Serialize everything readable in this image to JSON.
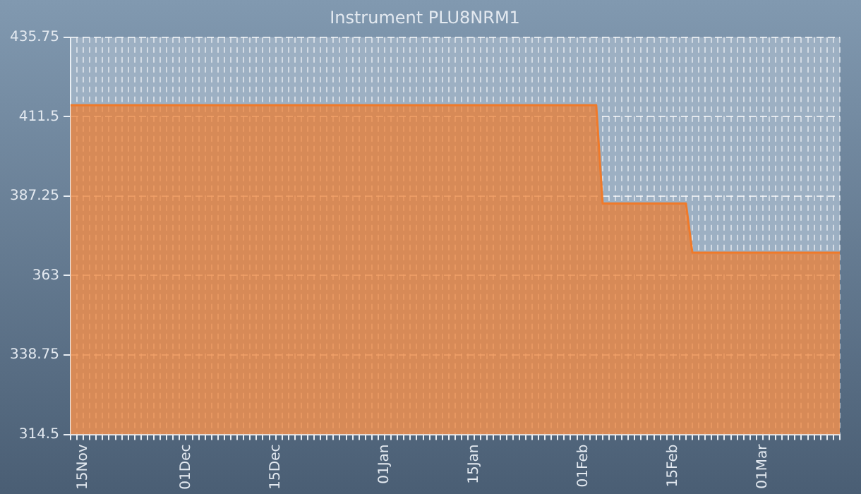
{
  "chart_data": {
    "type": "area",
    "title": "Instrument PLU8NRM1",
    "categories": [
      null,
      null,
      "15Nov",
      null,
      null,
      null,
      null,
      null,
      null,
      null,
      null,
      null,
      null,
      null,
      null,
      null,
      null,
      null,
      "01Dec",
      null,
      null,
      null,
      null,
      null,
      null,
      null,
      null,
      null,
      null,
      null,
      null,
      null,
      "15Dec",
      null,
      null,
      null,
      null,
      null,
      null,
      null,
      null,
      null,
      null,
      null,
      null,
      null,
      null,
      null,
      null,
      "01Jan",
      null,
      null,
      null,
      null,
      null,
      null,
      null,
      null,
      null,
      null,
      null,
      null,
      null,
      "15Jan",
      null,
      null,
      null,
      null,
      null,
      null,
      null,
      null,
      null,
      null,
      null,
      null,
      null,
      null,
      null,
      null,
      "01Feb",
      null,
      null,
      null,
      null,
      null,
      null,
      null,
      null,
      null,
      null,
      null,
      null,
      null,
      "15Feb",
      null,
      null,
      null,
      null,
      null,
      null,
      null,
      null,
      null,
      null,
      null,
      null,
      null,
      "01Mar",
      null,
      null,
      null,
      null,
      null,
      null,
      null,
      null,
      null,
      null,
      null,
      null
    ],
    "series": [
      {
        "color": "#f07a2a",
        "values": [
          415,
          415,
          415,
          415,
          415,
          415,
          415,
          415,
          415,
          415,
          415,
          415,
          415,
          415,
          415,
          415,
          415,
          415,
          415,
          415,
          415,
          415,
          415,
          415,
          415,
          415,
          415,
          415,
          415,
          415,
          415,
          415,
          415,
          415,
          415,
          415,
          415,
          415,
          415,
          415,
          415,
          415,
          415,
          415,
          415,
          415,
          415,
          415,
          415,
          415,
          415,
          415,
          415,
          415,
          415,
          415,
          415,
          415,
          415,
          415,
          415,
          415,
          415,
          415,
          415,
          415,
          415,
          415,
          415,
          415,
          415,
          415,
          415,
          415,
          415,
          415,
          415,
          415,
          415,
          415,
          415,
          415,
          415,
          385,
          385,
          385,
          385,
          385,
          385,
          385,
          385,
          385,
          385,
          385,
          385,
          385,
          385,
          370,
          370,
          370,
          370,
          370,
          370,
          370,
          370,
          370,
          370,
          370,
          370,
          370,
          370,
          370,
          370,
          370,
          370,
          370,
          370,
          370,
          370,
          370,
          370
        ]
      }
    ],
    "ylim": [
      314.5,
      435.75
    ],
    "yticks": [
      314.5,
      338.75,
      363,
      387.25,
      411.5,
      435.75
    ],
    "grid": true,
    "legend": false
  }
}
